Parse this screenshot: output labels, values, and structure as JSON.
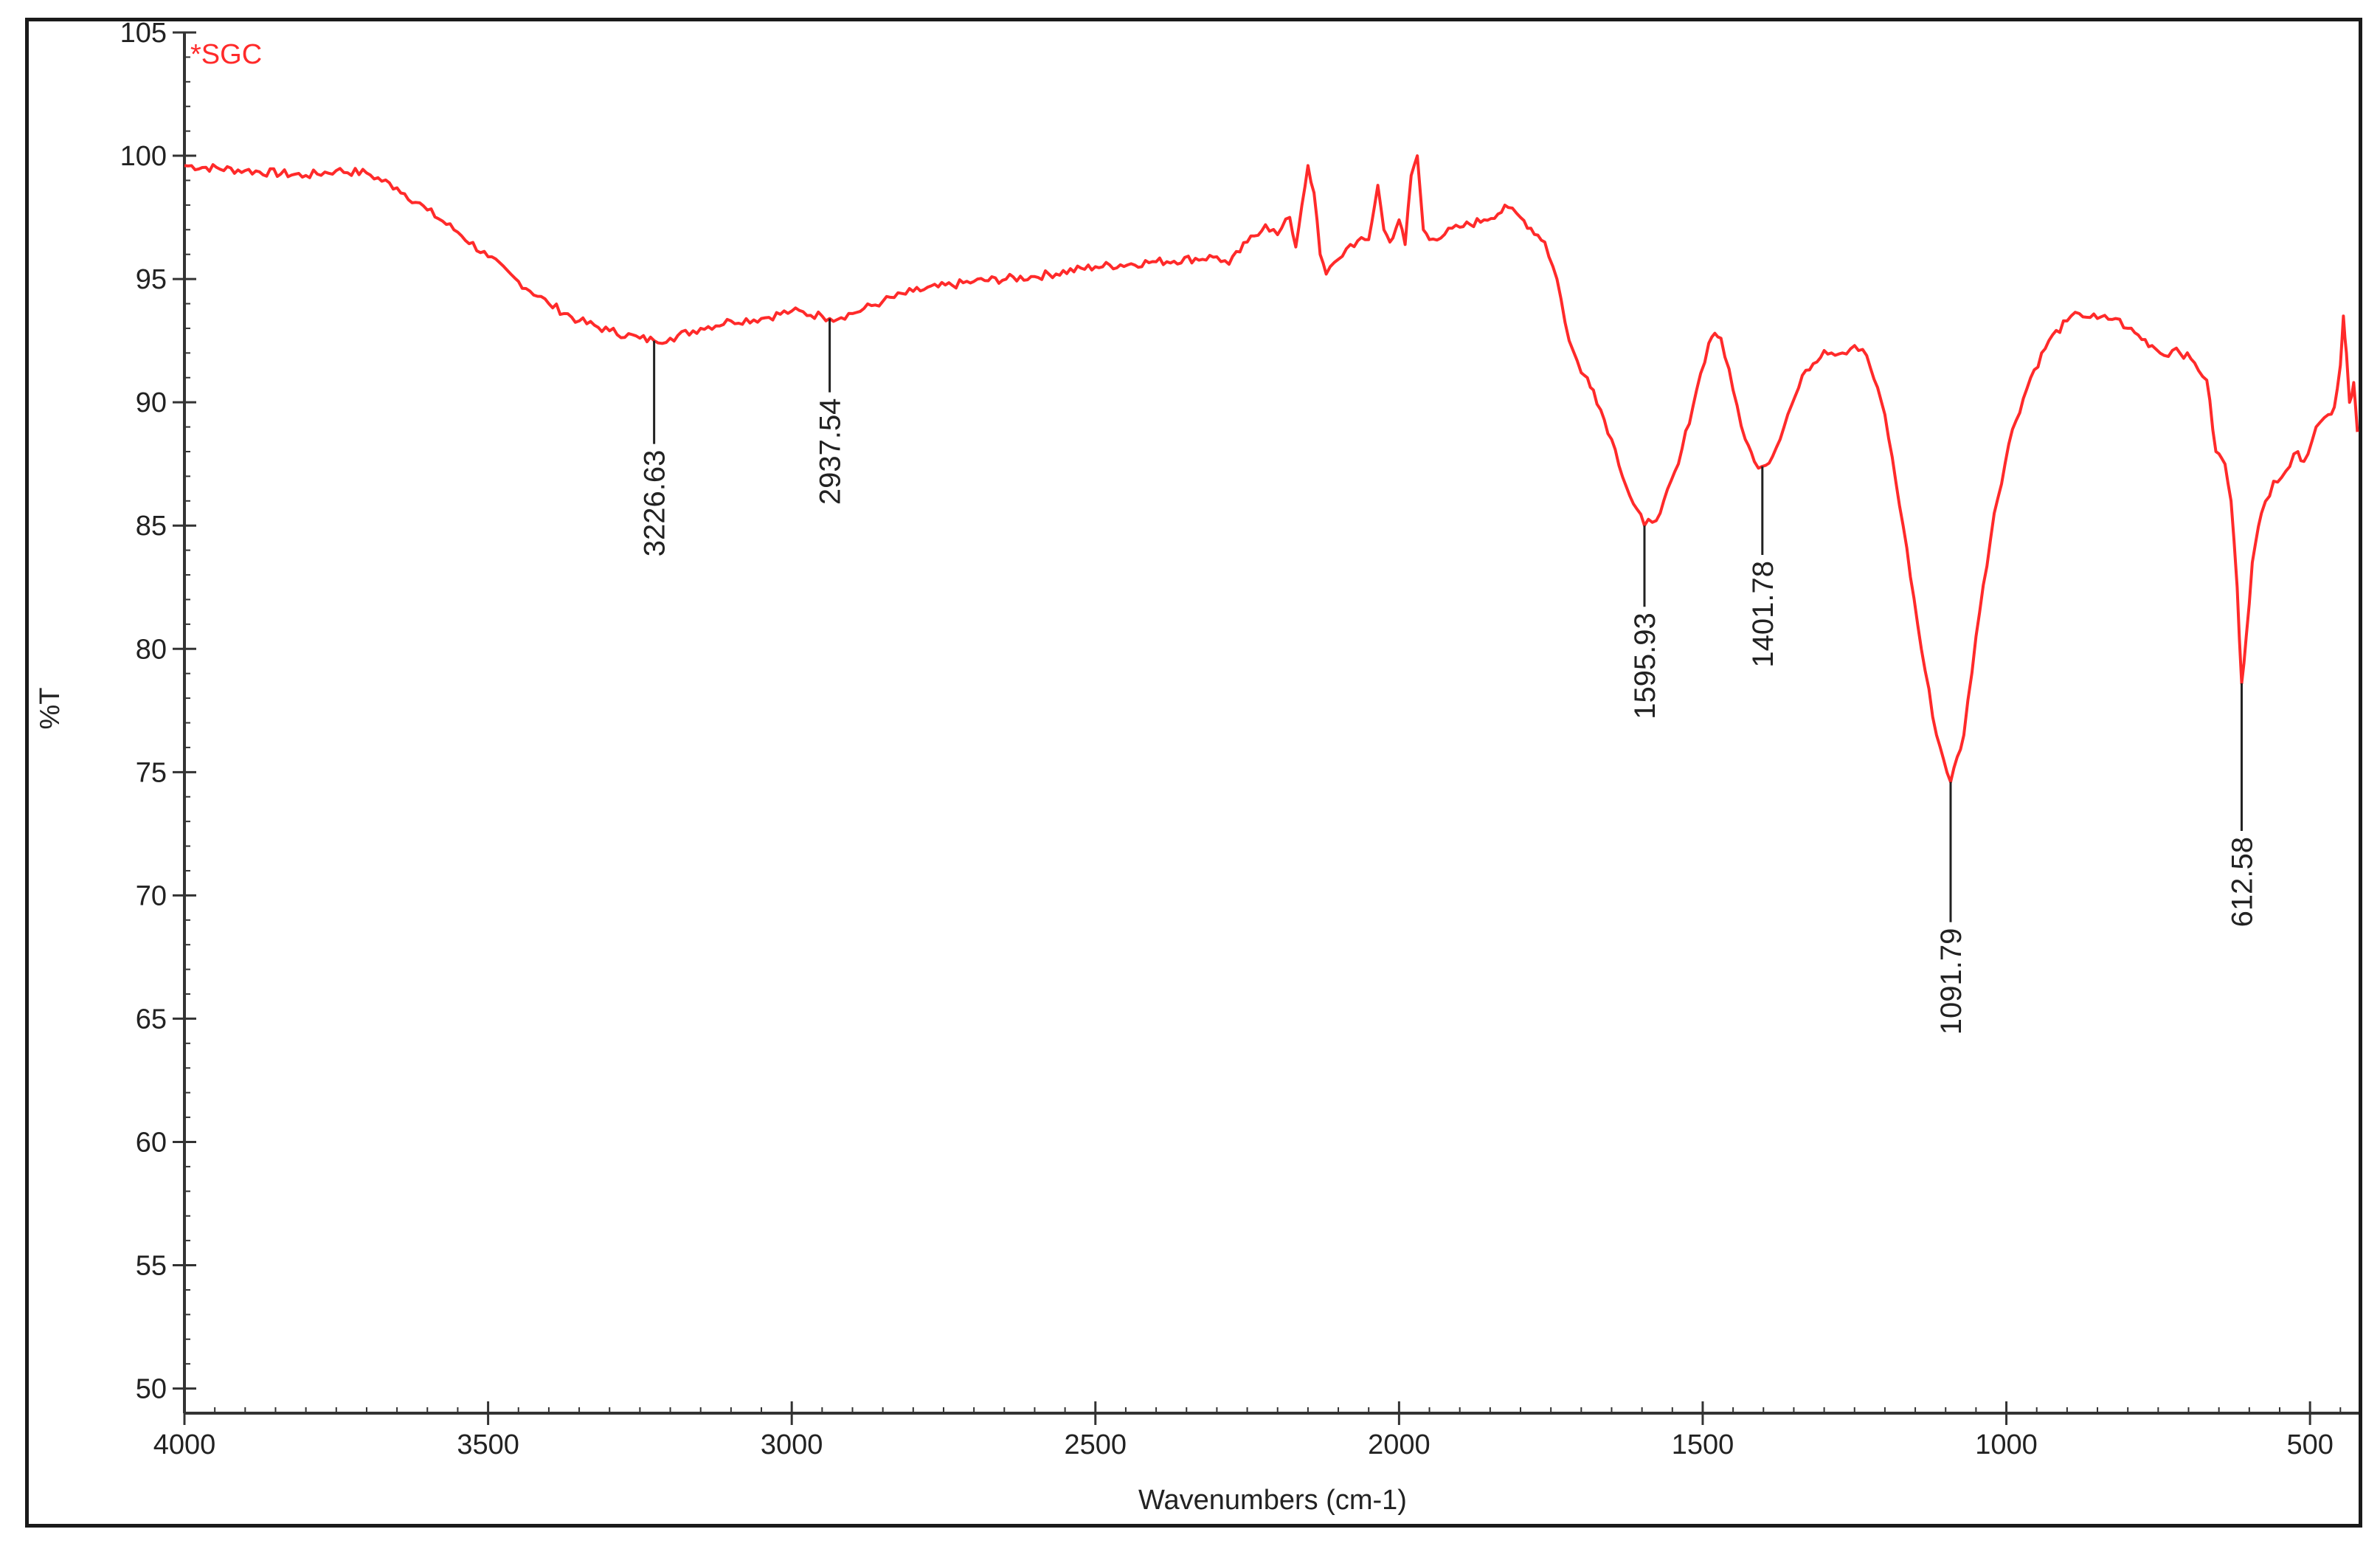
{
  "chart_data": {
    "type": "line",
    "xlabel": "Wavenumbers (cm-1)",
    "ylabel": "%T",
    "xlim": [
      4000,
      420
    ],
    "ylim": [
      49,
      105
    ],
    "x_ticks": [
      4000,
      3500,
      3000,
      2500,
      2000,
      1500,
      1000,
      500
    ],
    "y_ticks": [
      50,
      55,
      60,
      65,
      70,
      75,
      80,
      85,
      90,
      95,
      100,
      105
    ],
    "grid": false,
    "legend_position": "top-left",
    "series": [
      {
        "name": "*SGC",
        "color": "#ff2a2a",
        "points": [
          [
            4000,
            99.6
          ],
          [
            3900,
            99.4
          ],
          [
            3800,
            99.2
          ],
          [
            3750,
            99.4
          ],
          [
            3700,
            99.3
          ],
          [
            3650,
            98.7
          ],
          [
            3600,
            97.8
          ],
          [
            3550,
            96.9
          ],
          [
            3500,
            95.9
          ],
          [
            3450,
            94.9
          ],
          [
            3400,
            94.0
          ],
          [
            3350,
            93.3
          ],
          [
            3300,
            92.9
          ],
          [
            3250,
            92.6
          ],
          [
            3226.63,
            92.5
          ],
          [
            3200,
            92.6
          ],
          [
            3150,
            93.0
          ],
          [
            3100,
            93.3
          ],
          [
            3050,
            93.4
          ],
          [
            3000,
            93.7
          ],
          [
            2950,
            93.5
          ],
          [
            2937.54,
            93.4
          ],
          [
            2900,
            93.6
          ],
          [
            2850,
            94.1
          ],
          [
            2800,
            94.5
          ],
          [
            2700,
            94.9
          ],
          [
            2600,
            95.1
          ],
          [
            2500,
            95.5
          ],
          [
            2400,
            95.7
          ],
          [
            2300,
            95.9
          ],
          [
            2280,
            95.6
          ],
          [
            2250,
            96.5
          ],
          [
            2220,
            97.2
          ],
          [
            2200,
            96.8
          ],
          [
            2180,
            97.5
          ],
          [
            2170,
            96.3
          ],
          [
            2160,
            98.0
          ],
          [
            2150,
            99.6
          ],
          [
            2140,
            98.5
          ],
          [
            2130,
            96.0
          ],
          [
            2120,
            95.2
          ],
          [
            2100,
            95.8
          ],
          [
            2080,
            96.4
          ],
          [
            2050,
            96.6
          ],
          [
            2035,
            98.8
          ],
          [
            2025,
            97.0
          ],
          [
            2015,
            96.5
          ],
          [
            2000,
            97.4
          ],
          [
            1990,
            96.4
          ],
          [
            1980,
            99.2
          ],
          [
            1970,
            100.0
          ],
          [
            1960,
            97.0
          ],
          [
            1950,
            96.6
          ],
          [
            1900,
            97.1
          ],
          [
            1860,
            97.4
          ],
          [
            1820,
            97.9
          ],
          [
            1800,
            97.5
          ],
          [
            1760,
            96.5
          ],
          [
            1740,
            95.0
          ],
          [
            1720,
            92.5
          ],
          [
            1700,
            91.2
          ],
          [
            1690,
            91.0
          ],
          [
            1680,
            90.5
          ],
          [
            1650,
            88.5
          ],
          [
            1620,
            86.2
          ],
          [
            1595.93,
            85.0
          ],
          [
            1570,
            85.5
          ],
          [
            1540,
            87.5
          ],
          [
            1510,
            90.5
          ],
          [
            1490,
            92.4
          ],
          [
            1480,
            92.8
          ],
          [
            1470,
            92.6
          ],
          [
            1450,
            90.5
          ],
          [
            1430,
            88.5
          ],
          [
            1415,
            87.6
          ],
          [
            1401.78,
            87.4
          ],
          [
            1385,
            87.8
          ],
          [
            1360,
            89.5
          ],
          [
            1330,
            91.3
          ],
          [
            1300,
            92.1
          ],
          [
            1270,
            92.0
          ],
          [
            1250,
            92.3
          ],
          [
            1230,
            91.9
          ],
          [
            1200,
            89.5
          ],
          [
            1170,
            85.0
          ],
          [
            1140,
            80.0
          ],
          [
            1115,
            76.5
          ],
          [
            1091.79,
            74.6
          ],
          [
            1070,
            76.5
          ],
          [
            1050,
            80.5
          ],
          [
            1020,
            85.5
          ],
          [
            990,
            88.9
          ],
          [
            960,
            91.0
          ],
          [
            930,
            92.5
          ],
          [
            900,
            93.3
          ],
          [
            880,
            93.6
          ],
          [
            850,
            93.4
          ],
          [
            820,
            93.4
          ],
          [
            800,
            93.0
          ],
          [
            760,
            92.3
          ],
          [
            740,
            91.9
          ],
          [
            720,
            92.2
          ],
          [
            690,
            91.6
          ],
          [
            670,
            90.9
          ],
          [
            655,
            88.0
          ],
          [
            640,
            87.5
          ],
          [
            630,
            86.0
          ],
          [
            620,
            82.5
          ],
          [
            612.58,
            78.6
          ],
          [
            605,
            80.5
          ],
          [
            595,
            83.5
          ],
          [
            580,
            85.5
          ],
          [
            560,
            86.8
          ],
          [
            540,
            87.2
          ],
          [
            520,
            88.0
          ],
          [
            510,
            87.6
          ],
          [
            490,
            89.0
          ],
          [
            470,
            89.5
          ],
          [
            460,
            89.8
          ],
          [
            450,
            91.5
          ],
          [
            445,
            93.5
          ],
          [
            440,
            92.0
          ],
          [
            435,
            90.0
          ],
          [
            428,
            90.8
          ],
          [
            422,
            88.8
          ]
        ]
      }
    ],
    "annotations": [
      {
        "x": 3226.63,
        "y": 92.5,
        "text": "3226.63"
      },
      {
        "x": 2937.54,
        "y": 93.4,
        "text": "2937.54"
      },
      {
        "x": 1595.93,
        "y": 85.0,
        "text": "1595.93"
      },
      {
        "x": 1401.78,
        "y": 87.4,
        "text": "1401.78"
      },
      {
        "x": 1091.79,
        "y": 74.6,
        "text": "1091.79"
      },
      {
        "x": 612.58,
        "y": 78.6,
        "text": "612.58"
      }
    ]
  }
}
